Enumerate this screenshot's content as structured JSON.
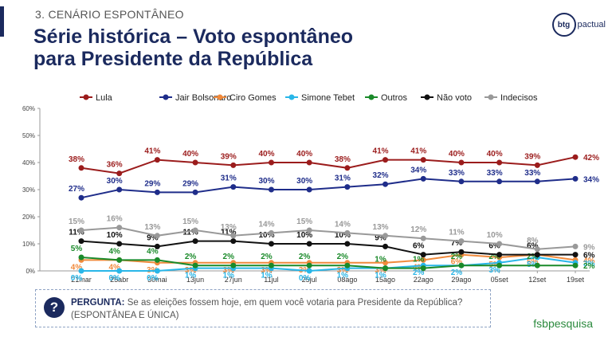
{
  "header": {
    "section": "3. CENÁRIO ESPONTÂNEO",
    "title_line1": "Série histórica – Voto espontâneo",
    "title_line2": "para Presidente da República"
  },
  "logo": {
    "mark": "btg",
    "text": "pactual"
  },
  "question": {
    "label": "PERGUNTA:",
    "text": "Se as eleições fossem hoje, em quem você votaria para Presidente da República?",
    "note": "(ESPONTÂNEA E ÚNICA)"
  },
  "footer": {
    "brand_a": "fsb",
    "brand_b": "pesquisa"
  },
  "chart_data": {
    "type": "line",
    "x": [
      "21mar",
      "25abr",
      "30mai",
      "13jun",
      "27jun",
      "11jul",
      "25jul",
      "08ago",
      "15ago",
      "22ago",
      "29ago",
      "05set",
      "12set",
      "19set"
    ],
    "ylim": [
      0,
      60
    ],
    "yticks": [
      "0%",
      "10%",
      "20%",
      "30%",
      "40%",
      "50%",
      "60%"
    ],
    "legend_position": "top",
    "grid": false,
    "series": [
      {
        "name": "Lula",
        "color": "#9b1c1c",
        "values": [
          38,
          36,
          41,
          40,
          39,
          40,
          40,
          38,
          41,
          41,
          40,
          40,
          39,
          42
        ]
      },
      {
        "name": "Jair Bolsonaro",
        "color": "#1f2d8a",
        "values": [
          27,
          30,
          29,
          29,
          31,
          30,
          30,
          31,
          32,
          34,
          33,
          33,
          33,
          34
        ]
      },
      {
        "name": "Ciro Gomes",
        "color": "#f08a3c",
        "values": [
          4,
          4,
          3,
          3,
          3,
          3,
          3,
          3,
          3,
          4,
          6,
          5,
          6,
          4
        ]
      },
      {
        "name": "Simone Tebet",
        "color": "#29b6e8",
        "values": [
          0,
          0,
          0,
          1,
          1,
          1,
          0,
          1,
          1,
          2,
          2,
          3,
          5,
          3
        ]
      },
      {
        "name": "Outros",
        "color": "#1a8a2a",
        "values": [
          5,
          4,
          4,
          2,
          2,
          2,
          2,
          2,
          1,
          1,
          2,
          2,
          2,
          2
        ]
      },
      {
        "name": "Não voto",
        "color": "#111111",
        "values": [
          11,
          10,
          9,
          11,
          11,
          10,
          10,
          10,
          9,
          6,
          7,
          6,
          6,
          6
        ]
      },
      {
        "name": "Indecisos",
        "color": "#999999",
        "values": [
          15,
          16,
          13,
          15,
          13,
          14,
          15,
          14,
          13,
          12,
          11,
          10,
          8,
          9
        ]
      }
    ],
    "labels": [
      [
        "38%",
        "36%",
        "41%",
        "40%",
        "39%",
        "40%",
        "40%",
        "38%",
        "41%",
        "41%",
        "40%",
        "40%",
        "39%",
        "42%"
      ],
      [
        "27%",
        "30%",
        "29%",
        "29%",
        "31%",
        "30%",
        "30%",
        "31%",
        "32%",
        "34%",
        "33%",
        "33%",
        "33%",
        "34%"
      ],
      [
        "4%",
        "4%",
        "3%",
        "3%",
        "3%",
        "3%",
        "3%",
        "3%",
        "3%",
        "4%",
        "6%",
        "5%",
        "6%",
        "4%"
      ],
      [
        "0%",
        "0%",
        "0%",
        "1%",
        "1%",
        "1%",
        "0%",
        "1%",
        "1%",
        "2%",
        "2%",
        "3%",
        "5%",
        "3%"
      ],
      [
        "5%",
        "4%",
        "4%",
        "2%",
        "2%",
        "2%",
        "2%",
        "2%",
        "1%",
        "1%",
        "2%",
        "2%",
        "2%",
        "2%"
      ],
      [
        "11%",
        "10%",
        "9%",
        "11%",
        "11%",
        "10%",
        "10%",
        "10%",
        "9%",
        "6%",
        "7%",
        "6%",
        "6%",
        "6%"
      ],
      [
        "15%",
        "16%",
        "13%",
        "15%",
        "13%",
        "14%",
        "15%",
        "14%",
        "13%",
        "12%",
        "11%",
        "10%",
        "8%",
        "9%"
      ]
    ]
  }
}
